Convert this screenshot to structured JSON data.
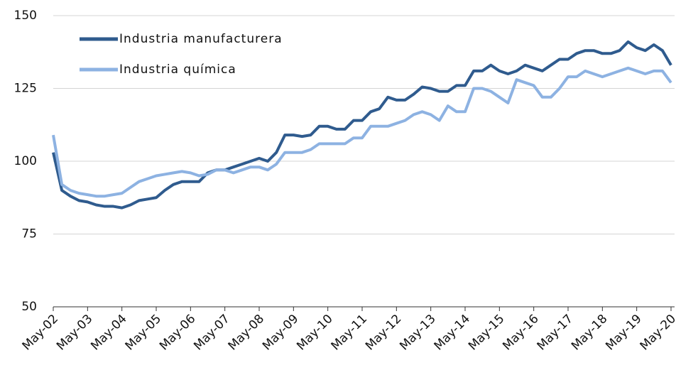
{
  "chart_data": {
    "type": "line",
    "x": [
      "May-02",
      "Aug-02",
      "Nov-02",
      "Feb-03",
      "May-03",
      "Aug-03",
      "Nov-03",
      "Feb-04",
      "May-04",
      "Aug-04",
      "Nov-04",
      "Feb-05",
      "May-05",
      "Aug-05",
      "Nov-05",
      "Feb-06",
      "May-06",
      "Aug-06",
      "Nov-06",
      "Feb-07",
      "May-07",
      "Aug-07",
      "Nov-07",
      "Feb-08",
      "May-08",
      "Aug-08",
      "Nov-08",
      "Feb-09",
      "May-09",
      "Aug-09",
      "Nov-09",
      "Feb-10",
      "May-10",
      "Aug-10",
      "Nov-10",
      "Feb-11",
      "May-11",
      "Aug-11",
      "Nov-11",
      "Feb-12",
      "May-12",
      "Aug-12",
      "Nov-12",
      "Feb-13",
      "May-13",
      "Aug-13",
      "Nov-13",
      "Feb-14",
      "May-14",
      "Aug-14",
      "Nov-14",
      "Feb-15",
      "May-15",
      "Aug-15",
      "Nov-15",
      "Feb-16",
      "May-16",
      "Aug-16",
      "Nov-16",
      "Feb-17",
      "May-17",
      "Aug-17",
      "Nov-17",
      "Feb-18",
      "May-18",
      "Aug-18",
      "Nov-18",
      "Feb-19",
      "May-19",
      "Aug-19",
      "Nov-19",
      "Feb-20",
      "May-20"
    ],
    "series": [
      {
        "name": "Industria manufacturera",
        "color": "#2f5b8e",
        "values": [
          103,
          90,
          88,
          86.5,
          86,
          85,
          84.5,
          84.5,
          84,
          85,
          86.5,
          87,
          87.5,
          90,
          92,
          93,
          93,
          93,
          96,
          97,
          97,
          98,
          99,
          100,
          101,
          100,
          103,
          109,
          109,
          108.5,
          109,
          112,
          112,
          111,
          111,
          114,
          114,
          117,
          118,
          122,
          121,
          121,
          123,
          125.5,
          125,
          124,
          124,
          126,
          126,
          131,
          131,
          133,
          131,
          130,
          131,
          133,
          132,
          131,
          133,
          135,
          135,
          137,
          138,
          138,
          137,
          137,
          138,
          141,
          139,
          138,
          140,
          138,
          133
        ]
      },
      {
        "name": "Industria química",
        "color": "#8db2e2",
        "values": [
          109,
          92,
          90,
          89,
          88.5,
          88,
          88,
          88.5,
          89,
          91,
          93,
          94,
          95,
          95.5,
          96,
          96.5,
          96,
          95,
          95.5,
          97,
          97,
          96,
          97,
          98,
          98,
          97,
          99,
          103,
          103,
          103,
          104,
          106,
          106,
          106,
          106,
          108,
          108,
          112,
          112,
          112,
          113,
          114,
          116,
          117,
          116,
          114,
          119,
          117,
          117,
          125,
          125,
          124,
          122,
          120,
          128,
          127,
          126,
          122,
          122,
          125,
          129,
          129,
          131,
          130,
          129,
          130,
          131,
          132,
          131,
          130,
          131,
          131,
          127
        ]
      }
    ],
    "xticks": [
      "May-02",
      "May-03",
      "May-04",
      "May-05",
      "May-06",
      "May-07",
      "May-08",
      "May-09",
      "May-10",
      "May-11",
      "May-12",
      "May-13",
      "May-14",
      "May-15",
      "May-16",
      "May-17",
      "May-18",
      "May-19",
      "May-20"
    ],
    "ylim": [
      50,
      150
    ],
    "yticks": [
      50,
      75,
      100,
      125,
      150
    ],
    "grid": true,
    "legend": "upper left"
  }
}
